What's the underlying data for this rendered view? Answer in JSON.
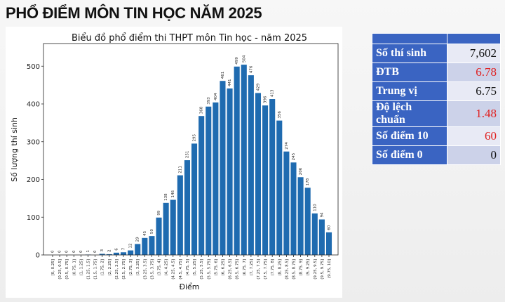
{
  "page_title": "PHỔ ĐIỂM MÔN TIN HỌC NĂM 2025",
  "stats": {
    "rows": [
      {
        "label": "Số thí sinh",
        "value": "7,602",
        "color": "#111111"
      },
      {
        "label": "ĐTB",
        "value": "6.78",
        "color": "#e02020"
      },
      {
        "label": "Trung vị",
        "value": "6.75",
        "color": "#111111"
      },
      {
        "label": "Độ lệch chuẩn",
        "value": "1.48",
        "color": "#e02020"
      },
      {
        "label": "Số điểm 10",
        "value": "60",
        "color": "#e02020"
      },
      {
        "label": "Số điểm 0",
        "value": "0",
        "color": "#111111"
      }
    ]
  },
  "chart_data": {
    "type": "bar",
    "title": "Biểu đồ phổ điểm thi THPT môn Tin học - năm 2025",
    "xlabel": "Điểm",
    "ylabel": "Số lượng thí sinh",
    "ylim": [
      0,
      560
    ],
    "yticks": [
      0,
      100,
      200,
      300,
      400,
      500
    ],
    "grid": false,
    "bar_color": "#1f6bb0",
    "categories": [
      "[0, 0.25]",
      "(0.25, 0.5]",
      "(0.5, 0.75]",
      "(0.75, 1]",
      "(1, 1.25]",
      "(1.25, 1.5]",
      "(1.5, 1.75]",
      "(1.75, 2]",
      "(2, 2.25]",
      "(2.25, 2.5]",
      "(2.5, 2.75]",
      "(2.75, 3]",
      "(3, 3.25]",
      "(3.25, 3.5]",
      "(3.5, 3.75]",
      "(3.75, 4]",
      "(4, 4.25]",
      "(4.25, 4.5]",
      "(4.5, 4.75]",
      "(4.75, 5]",
      "(5, 5.25]",
      "(5.25, 5.5]",
      "(5.5, 5.75]",
      "(5.75, 6]",
      "(6, 6.25]",
      "(6.25, 6.5]",
      "(6.5, 6.75]",
      "(6.75, 7]",
      "(7, 7.25]",
      "(7.25, 7.5]",
      "(7.5, 7.75]",
      "(7.75, 8]",
      "(8, 8.25]",
      "(8.25, 8.5]",
      "(8.5, 8.75]",
      "(8.75, 9]",
      "(9, 9.25]",
      "(9.25, 9.5]",
      "(9.5, 9.75]",
      "(9.75, 10]"
    ],
    "values": [
      0,
      0,
      0,
      0,
      0,
      1,
      0,
      3,
      2,
      6,
      7,
      12,
      29,
      45,
      50,
      99,
      138,
      146,
      211,
      251,
      295,
      368,
      393,
      404,
      461,
      441,
      499,
      504,
      476,
      429,
      396,
      413,
      356,
      274,
      245,
      206,
      178,
      110,
      94,
      60
    ]
  }
}
